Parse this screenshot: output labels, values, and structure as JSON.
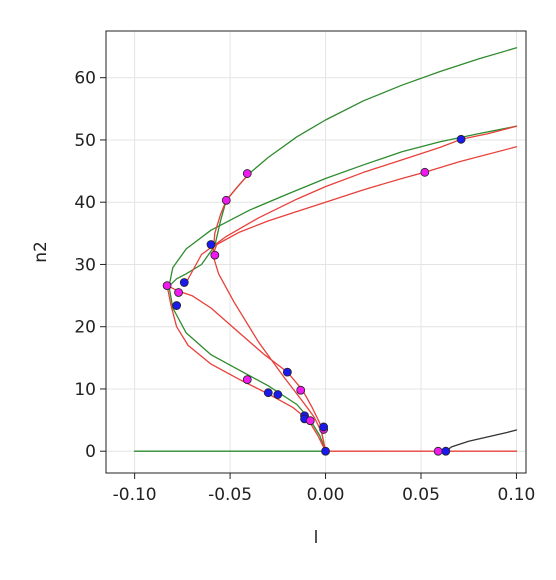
{
  "chart_data": {
    "type": "line",
    "title": "",
    "xlabel": "l",
    "ylabel": "n2",
    "xlim": [
      -0.115,
      0.105
    ],
    "ylim": [
      -3.5,
      67.5
    ],
    "grid": true,
    "legend": "none",
    "x_ticks": [
      -0.1,
      -0.05,
      0.0,
      0.05,
      0.1
    ],
    "x_tick_labels": [
      "-0.10",
      "-0.05",
      "0.00",
      "0.05",
      "0.10"
    ],
    "y_ticks": [
      0,
      10,
      20,
      30,
      40,
      50,
      60
    ],
    "y_tick_labels": [
      "0",
      "10",
      "20",
      "30",
      "40",
      "50",
      "60"
    ],
    "colors": {
      "green": "#2e8b2e",
      "red": "#e8403a",
      "black": "#333333",
      "point_blue": "#1a1aee",
      "point_magenta": "#ee1aee",
      "grid": "#e4e4e4"
    },
    "series": [
      {
        "color": "green",
        "points": [
          [
            -0.1,
            0
          ],
          [
            0,
            0
          ]
        ]
      },
      {
        "color": "green",
        "points": [
          [
            0,
            0
          ],
          [
            -0.003,
            2.5
          ],
          [
            -0.008,
            5
          ],
          [
            -0.015,
            7.5
          ],
          [
            -0.03,
            10.5
          ],
          [
            -0.045,
            13
          ],
          [
            -0.06,
            15.5
          ],
          [
            -0.073,
            19
          ],
          [
            -0.08,
            23
          ],
          [
            -0.082,
            26.5
          ],
          [
            -0.08,
            29.5
          ],
          [
            -0.073,
            32.5
          ],
          [
            -0.06,
            35.5
          ],
          [
            -0.04,
            38.7
          ],
          [
            -0.02,
            41.3
          ],
          [
            0,
            43.8
          ],
          [
            0.02,
            46
          ],
          [
            0.04,
            48.1
          ],
          [
            0.06,
            49.7
          ],
          [
            0.08,
            51
          ],
          [
            0.1,
            52.2
          ]
        ]
      },
      {
        "color": "green",
        "points": [
          [
            -0.082,
            26.5
          ],
          [
            -0.078,
            27.7
          ],
          [
            -0.073,
            28.5
          ],
          [
            -0.065,
            30
          ],
          [
            -0.058,
            33
          ],
          [
            -0.055,
            37
          ],
          [
            -0.052,
            40.3
          ],
          [
            -0.046,
            42.5
          ],
          [
            -0.04,
            44.6
          ],
          [
            -0.03,
            47.2
          ],
          [
            -0.015,
            50.5
          ],
          [
            0,
            53.2
          ],
          [
            0.02,
            56.3
          ],
          [
            0.04,
            58.8
          ],
          [
            0.06,
            61
          ],
          [
            0.08,
            63
          ],
          [
            0.1,
            64.8
          ]
        ]
      },
      {
        "color": "red",
        "points": [
          [
            0,
            0
          ],
          [
            0.05,
            0
          ],
          [
            0.1,
            0
          ]
        ]
      },
      {
        "color": "red",
        "points": [
          [
            0,
            0
          ],
          [
            -0.004,
            2.5
          ],
          [
            -0.009,
            5
          ],
          [
            -0.017,
            7
          ],
          [
            -0.03,
            9.2
          ],
          [
            -0.045,
            11.5
          ],
          [
            -0.06,
            14
          ],
          [
            -0.072,
            17
          ],
          [
            -0.078,
            20
          ],
          [
            -0.081,
            23.5
          ],
          [
            -0.083,
            26.6
          ]
        ]
      },
      {
        "color": "red",
        "points": [
          [
            -0.083,
            26.6
          ],
          [
            -0.077,
            25.7
          ],
          [
            -0.07,
            25
          ],
          [
            -0.06,
            23
          ],
          [
            -0.047,
            19.5
          ],
          [
            -0.032,
            15.5
          ],
          [
            -0.02,
            12.7
          ],
          [
            -0.012,
            9.8
          ],
          [
            -0.007,
            7
          ],
          [
            -0.003,
            4.5
          ],
          [
            0,
            0
          ]
        ]
      },
      {
        "color": "red",
        "points": [
          [
            0,
            0
          ],
          [
            -0.002,
            3
          ],
          [
            -0.006,
            5.5
          ],
          [
            -0.012,
            8
          ],
          [
            -0.022,
            12
          ],
          [
            -0.035,
            17.5
          ],
          [
            -0.048,
            24
          ],
          [
            -0.056,
            28.5
          ],
          [
            -0.059,
            31.5
          ],
          [
            -0.058,
            35
          ],
          [
            -0.055,
            38
          ],
          [
            -0.052,
            40.3
          ],
          [
            -0.046,
            42.5
          ],
          [
            -0.04,
            44.6
          ]
        ]
      },
      {
        "color": "red",
        "points": [
          [
            -0.059,
            31.5
          ],
          [
            -0.057,
            33.2
          ],
          [
            -0.045,
            35.2
          ],
          [
            -0.03,
            37
          ],
          [
            -0.015,
            38.5
          ],
          [
            0,
            40
          ],
          [
            0.02,
            42
          ],
          [
            0.04,
            43.8
          ],
          [
            0.052,
            44.8
          ],
          [
            0.07,
            46.5
          ],
          [
            0.1,
            48.9
          ]
        ]
      },
      {
        "color": "red",
        "points": [
          [
            -0.073,
            27.1
          ],
          [
            -0.065,
            31.6
          ],
          [
            -0.052,
            34.5
          ],
          [
            -0.035,
            37.5
          ],
          [
            -0.015,
            40.5
          ],
          [
            0,
            42.5
          ],
          [
            0.02,
            44.8
          ],
          [
            0.04,
            46.8
          ],
          [
            0.06,
            48.8
          ],
          [
            0.071,
            50.1
          ],
          [
            0.085,
            51
          ],
          [
            0.1,
            52.2
          ]
        ]
      },
      {
        "color": "black",
        "points": [
          [
            0.063,
            0
          ],
          [
            0.066,
            0.7
          ],
          [
            0.075,
            1.6
          ],
          [
            0.085,
            2.3
          ],
          [
            0.095,
            3
          ],
          [
            0.1,
            3.4
          ]
        ]
      }
    ],
    "points": [
      {
        "x": 0,
        "y": 0,
        "color": "point_blue"
      },
      {
        "x": -0.001,
        "y": 3.5,
        "color": "point_magenta"
      },
      {
        "x": -0.001,
        "y": 3.9,
        "color": "point_blue"
      },
      {
        "x": -0.011,
        "y": 5.7,
        "color": "point_blue"
      },
      {
        "x": -0.011,
        "y": 5.2,
        "color": "point_blue"
      },
      {
        "x": -0.008,
        "y": 4.9,
        "color": "point_magenta"
      },
      {
        "x": -0.013,
        "y": 9.8,
        "color": "point_magenta"
      },
      {
        "x": -0.02,
        "y": 12.7,
        "color": "point_blue"
      },
      {
        "x": -0.025,
        "y": 9.1,
        "color": "point_blue"
      },
      {
        "x": -0.03,
        "y": 9.4,
        "color": "point_blue"
      },
      {
        "x": -0.041,
        "y": 11.5,
        "color": "point_magenta"
      },
      {
        "x": -0.083,
        "y": 26.6,
        "color": "point_magenta"
      },
      {
        "x": -0.077,
        "y": 25.5,
        "color": "point_magenta"
      },
      {
        "x": -0.078,
        "y": 23.4,
        "color": "point_blue"
      },
      {
        "x": -0.074,
        "y": 27.1,
        "color": "point_blue"
      },
      {
        "x": -0.058,
        "y": 31.5,
        "color": "point_magenta"
      },
      {
        "x": -0.06,
        "y": 33.2,
        "color": "point_blue"
      },
      {
        "x": -0.052,
        "y": 40.3,
        "color": "point_magenta"
      },
      {
        "x": -0.041,
        "y": 44.6,
        "color": "point_magenta"
      },
      {
        "x": 0.052,
        "y": 44.8,
        "color": "point_magenta"
      },
      {
        "x": 0.071,
        "y": 50.1,
        "color": "point_blue"
      },
      {
        "x": 0.059,
        "y": 0,
        "color": "point_magenta"
      },
      {
        "x": 0.063,
        "y": 0,
        "color": "point_blue"
      }
    ]
  }
}
